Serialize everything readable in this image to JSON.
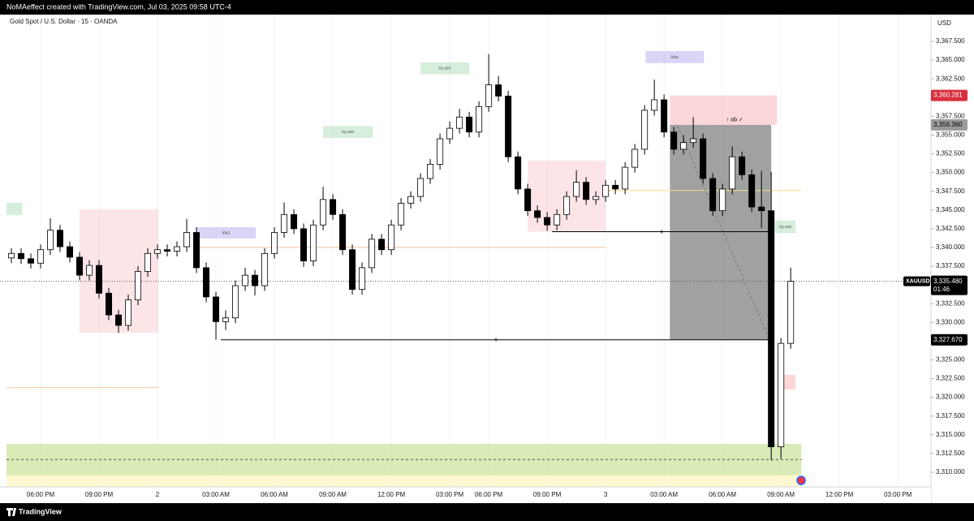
{
  "chart_data": {
    "type": "candlestick",
    "caption": "NoMAeffect created with TradingView.com, Jul 03, 2025 09:58 UTC-4",
    "title": "Gold Spot / U.S. Dollar · 15 · OANDA",
    "currency": "USD",
    "brand": "TradingView",
    "symbol": "XAUUSD",
    "countdown": "01:46",
    "up_color": "#ffffff",
    "down_color": "#000000",
    "wick_color": "#000000",
    "xlim": [
      -3.5,
      91.4
    ],
    "ylim": [
      3308.05,
      3371.07
    ],
    "xticks": [
      {
        "value": 0,
        "label": "06:00 PM"
      },
      {
        "value": 6,
        "label": "09:00 PM"
      },
      {
        "value": 12,
        "label": "2"
      },
      {
        "value": 18,
        "label": "03:00 AM"
      },
      {
        "value": 24,
        "label": "06:00 AM"
      },
      {
        "value": 30,
        "label": "09:00 AM"
      },
      {
        "value": 36,
        "label": "12:00 PM"
      },
      {
        "value": 42,
        "label": "03:00 PM"
      },
      {
        "value": 46,
        "label": "06:00 PM"
      },
      {
        "value": 52,
        "label": "09:00 PM"
      },
      {
        "value": 58,
        "label": "3"
      },
      {
        "value": 64,
        "label": "03:00 AM"
      },
      {
        "value": 70,
        "label": "06:00 AM"
      },
      {
        "value": 76,
        "label": "09:00 AM"
      },
      {
        "value": 82,
        "label": "12:00 PM"
      },
      {
        "value": 88,
        "label": "03:00 PM"
      }
    ],
    "yticks": [
      {
        "value": 3310,
        "label": "3,310.000"
      },
      {
        "value": 3312.5,
        "label": "3,312.500"
      },
      {
        "value": 3315,
        "label": "3,315.000"
      },
      {
        "value": 3317.5,
        "label": "3,317.500"
      },
      {
        "value": 3320,
        "label": "3,320.000"
      },
      {
        "value": 3322.5,
        "label": "3,322.500"
      },
      {
        "value": 3325,
        "label": "3,325.000"
      },
      {
        "value": 3327.5,
        "label": "3,327.500"
      },
      {
        "value": 3330,
        "label": "3,330.000"
      },
      {
        "value": 3332.5,
        "label": "3,332.500"
      },
      {
        "value": 3335,
        "label": "3,335.000"
      },
      {
        "value": 3337.5,
        "label": "3,337.500"
      },
      {
        "value": 3340,
        "label": "3,340.000"
      },
      {
        "value": 3342.5,
        "label": "3,342.500"
      },
      {
        "value": 3345,
        "label": "3,345.000"
      },
      {
        "value": 3347.5,
        "label": "3,347.500"
      },
      {
        "value": 3350,
        "label": "3,350.000"
      },
      {
        "value": 3352.5,
        "label": "3,352.500"
      },
      {
        "value": 3355,
        "label": "3,355.000"
      },
      {
        "value": 3357.5,
        "label": "3,357.500"
      },
      {
        "value": 3360,
        "label": "3,360.000"
      },
      {
        "value": 3362.5,
        "label": "3,362.500"
      },
      {
        "value": 3365,
        "label": "3,365.000"
      },
      {
        "value": 3367.5,
        "label": "3,367.500"
      }
    ],
    "x": [
      -3,
      -2,
      -1,
      0,
      1,
      2,
      3,
      4,
      5,
      6,
      7,
      8,
      9,
      10,
      11,
      12,
      13,
      14,
      15,
      16,
      17,
      18,
      19,
      20,
      21,
      22,
      23,
      24,
      25,
      26,
      27,
      28,
      29,
      30,
      31,
      32,
      33,
      34,
      35,
      36,
      37,
      38,
      39,
      40,
      41,
      42,
      43,
      44,
      45,
      46,
      47,
      48,
      49,
      50,
      51,
      52,
      53,
      54,
      55,
      56,
      57,
      58,
      59,
      60,
      61,
      62,
      63,
      64,
      65,
      66,
      67,
      68,
      69,
      70,
      71,
      72,
      73,
      74,
      75,
      76,
      77
    ],
    "open": [
      3338.6,
      3339.2,
      3338.5,
      3337.9,
      3339.7,
      3342.3,
      3340.1,
      3338.7,
      3336.3,
      3337.6,
      3333.9,
      3331.0,
      3329.6,
      3333.0,
      3336.8,
      3339.2,
      3339.7,
      3339.5,
      3340.1,
      3342.0,
      3337.3,
      3333.4,
      3330.1,
      3330.6,
      3334.9,
      3336.3,
      3334.9,
      3339.2,
      3342.0,
      3344.4,
      3342.5,
      3338.2,
      3343.0,
      3346.4,
      3344.4,
      3339.7,
      3334.4,
      3337.3,
      3341.1,
      3339.7,
      3343.0,
      3345.9,
      3346.8,
      3349.2,
      3351.1,
      3354.5,
      3355.9,
      3357.4,
      3355.4,
      3358.8,
      3361.7,
      3360.2,
      3352.1,
      3347.8,
      3344.9,
      3344.0,
      3343.0,
      3344.4,
      3346.8,
      3348.7,
      3346.4,
      3346.8,
      3348.3,
      3347.8,
      3350.7,
      3353.1,
      3358.3,
      3359.7,
      3355.4,
      3353.1,
      3354.0,
      3354.5,
      3349.2,
      3344.9,
      3347.8,
      3352.1,
      3349.7,
      3345.4,
      3344.9,
      3313.4,
      3327.2
    ],
    "high": [
      3339.9,
      3339.9,
      3339.2,
      3340.4,
      3343.9,
      3343.0,
      3340.8,
      3339.4,
      3338.3,
      3338.3,
      3334.6,
      3331.7,
      3333.7,
      3337.5,
      3339.9,
      3340.4,
      3340.4,
      3340.8,
      3343.8,
      3342.7,
      3338.0,
      3334.1,
      3331.6,
      3335.6,
      3337.3,
      3337.0,
      3339.9,
      3342.7,
      3346.0,
      3345.1,
      3343.2,
      3343.7,
      3348.1,
      3347.1,
      3345.1,
      3340.4,
      3338.0,
      3341.8,
      3341.8,
      3343.7,
      3346.6,
      3347.5,
      3349.9,
      3351.8,
      3355.2,
      3356.8,
      3358.5,
      3358.1,
      3359.5,
      3365.8,
      3362.9,
      3360.9,
      3352.8,
      3348.5,
      3345.6,
      3344.7,
      3345.1,
      3347.5,
      3350.3,
      3349.4,
      3347.5,
      3349.0,
      3349.0,
      3351.4,
      3353.8,
      3359.0,
      3362.4,
      3360.4,
      3356.1,
      3355.0,
      3357.4,
      3355.2,
      3349.9,
      3348.5,
      3353.5,
      3352.8,
      3350.4,
      3350.2,
      3350.1,
      3327.9,
      3337.3
    ],
    "low": [
      3337.9,
      3337.8,
      3337.2,
      3337.2,
      3339.0,
      3339.4,
      3338.0,
      3335.6,
      3335.6,
      3333.2,
      3330.3,
      3328.6,
      3328.9,
      3332.3,
      3336.1,
      3338.5,
      3338.8,
      3338.8,
      3339.4,
      3336.6,
      3332.7,
      3327.7,
      3329.0,
      3329.9,
      3334.2,
      3333.6,
      3334.2,
      3338.5,
      3341.3,
      3341.8,
      3337.4,
      3337.5,
      3342.3,
      3343.7,
      3339.0,
      3333.7,
      3333.7,
      3336.6,
      3339.0,
      3339.0,
      3342.3,
      3345.2,
      3346.1,
      3348.5,
      3350.4,
      3353.8,
      3355.2,
      3354.7,
      3354.7,
      3358.1,
      3359.5,
      3351.4,
      3347.1,
      3344.2,
      3343.3,
      3342.2,
      3342.3,
      3343.7,
      3346.1,
      3345.7,
      3345.7,
      3346.1,
      3347.1,
      3347.1,
      3350.0,
      3352.4,
      3357.6,
      3354.7,
      3352.4,
      3352.4,
      3353.3,
      3348.5,
      3344.2,
      3344.2,
      3347.1,
      3349.0,
      3344.7,
      3342.6,
      3311.6,
      3311.8,
      3326.5
    ],
    "close": [
      3339.2,
      3338.5,
      3337.9,
      3339.7,
      3342.3,
      3340.1,
      3338.7,
      3336.3,
      3337.6,
      3333.9,
      3331.0,
      3329.6,
      3333.0,
      3336.8,
      3339.2,
      3339.7,
      3339.5,
      3340.1,
      3342.0,
      3337.3,
      3333.4,
      3330.1,
      3330.6,
      3334.9,
      3336.3,
      3334.9,
      3339.2,
      3342.0,
      3344.4,
      3342.5,
      3338.2,
      3343.0,
      3346.4,
      3344.4,
      3339.7,
      3334.4,
      3337.3,
      3341.1,
      3339.7,
      3343.0,
      3345.9,
      3346.8,
      3349.2,
      3351.1,
      3354.5,
      3355.9,
      3357.4,
      3355.4,
      3358.8,
      3361.7,
      3360.2,
      3352.1,
      3347.8,
      3344.9,
      3344.0,
      3343.0,
      3344.4,
      3346.8,
      3348.7,
      3346.4,
      3346.8,
      3348.3,
      3347.8,
      3350.7,
      3353.1,
      3358.3,
      3359.7,
      3355.4,
      3353.1,
      3354.0,
      3354.5,
      3349.2,
      3344.9,
      3347.8,
      3352.1,
      3349.7,
      3345.4,
      3344.9,
      3313.4,
      3327.2,
      3335.48
    ],
    "zones": [
      {
        "x": [
          -3.5,
          78.1
        ],
        "y": [
          3308.05,
          3313.8
        ],
        "color": "rgba(255,241,170,0.55)"
      },
      {
        "x": [
          -3.5,
          78.1
        ],
        "y": [
          3309.6,
          3313.8
        ],
        "color": "rgba(170,220,150,0.45)"
      },
      {
        "x": [
          64.6,
          75
        ],
        "y": [
          3327.67,
          3356.36
        ],
        "color": "rgba(110,110,110,0.65)"
      },
      {
        "x": [
          64.6,
          75.6
        ],
        "y": [
          3356.36,
          3360.281
        ],
        "color": "rgba(242,54,69,0.2)",
        "label": "↑ ob ✓"
      },
      {
        "x": [
          4,
          12.1
        ],
        "y": [
          3328.6,
          3345.1
        ],
        "color": "rgba(242,54,69,0.13)"
      },
      {
        "x": [
          50,
          58
        ],
        "y": [
          3342.1,
          3351.6
        ],
        "color": "rgba(242,54,69,0.13)"
      },
      {
        "x": [
          75.7,
          77.5
        ],
        "y": [
          3321.05,
          3323
        ],
        "color": "rgba(242,54,69,0.2)"
      },
      {
        "x": [
          -3.5,
          -1.9
        ],
        "y": [
          3344.3,
          3345.95
        ],
        "color": "rgba(120,200,140,0.3)"
      },
      {
        "x": [
          16,
          22.1
        ],
        "y": [
          3341.2,
          3342.7
        ],
        "color": "rgba(160,150,235,0.4)",
        "label": "lokz"
      },
      {
        "x": [
          29,
          34.1
        ],
        "y": [
          3354.6,
          3356.2
        ],
        "color": "rgba(120,200,140,0.3)",
        "label": "ny-am"
      },
      {
        "x": [
          39,
          44
        ],
        "y": [
          3363.1,
          3364.7
        ],
        "color": "rgba(120,200,140,0.3)",
        "label": "ny-pm"
      },
      {
        "x": [
          62.1,
          68.1
        ],
        "y": [
          3364.6,
          3366.2
        ],
        "color": "rgba(160,150,235,0.4)",
        "label": "lokz"
      },
      {
        "x": [
          75.4,
          77.5
        ],
        "y": [
          3341.9,
          3343.6
        ],
        "color": "rgba(120,200,140,0.3)",
        "label": "ny-am"
      }
    ],
    "lines": [
      {
        "x": [
          18.5,
          75
        ],
        "y": [
          3327.67,
          3327.67
        ],
        "color": "#000000",
        "label": "x"
      },
      {
        "x": [
          52.5,
          75
        ],
        "y": [
          3342.1,
          3342.1
        ],
        "color": "#000000",
        "label": "x"
      },
      {
        "x": [
          15.8,
          58
        ],
        "y": [
          3340.0,
          3340.0
        ],
        "color": "#f7c29a"
      },
      {
        "x": [
          -3.5,
          12.1
        ],
        "y": [
          3321.3,
          3321.3
        ],
        "color": "#f7c29a"
      },
      {
        "x": [
          58,
          78.1
        ],
        "y": [
          3347.6,
          3347.6
        ],
        "color": "#f2de8a"
      },
      {
        "x": [
          65.4,
          74.8
        ],
        "y": [
          3356.2,
          3327.7
        ],
        "color": "#777777",
        "dash": true
      },
      {
        "x": [
          -3.5,
          78.1
        ],
        "y": [
          3311.7,
          3311.7
        ],
        "color": "#555555",
        "dash": true
      }
    ],
    "price_labels": [
      {
        "value": 3360.281,
        "label": "3,360.281",
        "color": "#d8303e",
        "text_color": "#ffffff"
      },
      {
        "value": 3356.36,
        "label": "3,356.360",
        "color": "#9a9a9a",
        "text_color": "#000000"
      },
      {
        "value": 3327.67,
        "label": "3,327.670",
        "color": "#000000",
        "text_color": "#ffffff"
      }
    ],
    "last_price": {
      "value": 3335.48,
      "label": "3,335.480"
    }
  }
}
